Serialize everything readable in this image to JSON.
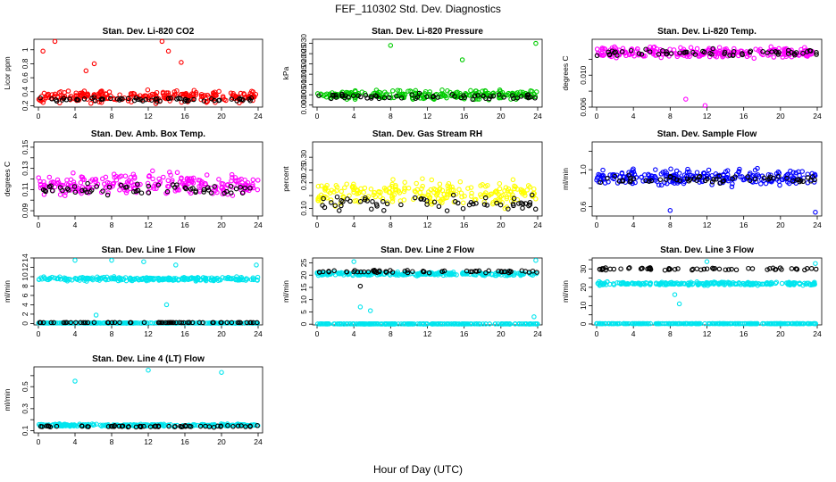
{
  "title": "FEF_110302  Std. Dev. Diagnostics",
  "xlabel": "Hour of Day (UTC)",
  "chart_data": [
    {
      "type": "scatter",
      "title": "Stan. Dev. Li-820 CO2",
      "ylabel": "Licor ppm",
      "xlim": [
        0,
        24
      ],
      "ylim": [
        0.18,
        1.15
      ],
      "yticks": [
        0.2,
        0.4,
        0.6,
        0.8,
        1.0
      ],
      "xticks": [
        0,
        4,
        8,
        12,
        16,
        20,
        24
      ],
      "series": [
        {
          "color": "#ff0000",
          "base": 0.33,
          "spread": 0.12,
          "outliers": [
            [
              0.5,
              0.98
            ],
            [
              1.8,
              1.12
            ],
            [
              5.2,
              0.7
            ],
            [
              6.1,
              0.8
            ],
            [
              13.5,
              1.12
            ],
            [
              14.2,
              0.98
            ],
            [
              15.6,
              0.82
            ]
          ]
        },
        {
          "color": "#000000",
          "base": 0.29,
          "spread": 0.04,
          "outliers": []
        }
      ]
    },
    {
      "type": "scatter",
      "title": "Stan. Dev. Li-820 Pressure",
      "ylabel": "kPa",
      "xlim": [
        0,
        24
      ],
      "ylim": [
        -0.001,
        0.032
      ],
      "yticks": [
        0.0,
        0.005,
        0.015,
        0.025
      ],
      "ytick_labels": [
        "0.000",
        "0.005",
        "0.015",
        "0.025"
      ],
      "ytick_labels_extra": [
        [
          0.01,
          "0.010"
        ],
        [
          0.02,
          "0.020"
        ],
        [
          0.03,
          "0.030"
        ]
      ],
      "xticks": [
        0,
        4,
        8,
        12,
        16,
        20,
        24
      ],
      "series": [
        {
          "color": "#00cc00",
          "base": 0.005,
          "spread": 0.003,
          "outliers": [
            [
              8,
              0.029
            ],
            [
              15.8,
              0.022
            ],
            [
              23.8,
              0.03
            ]
          ]
        },
        {
          "color": "#000000",
          "base": 0.004,
          "spread": 0.002,
          "outliers": []
        }
      ]
    },
    {
      "type": "scatter",
      "title": "Stan. Dev. Li-820 Temp.",
      "ylabel": "degrees C",
      "xlim": [
        0,
        24
      ],
      "ylim": [
        0.006,
        0.0145
      ],
      "yticks": [
        0.006,
        0.008,
        0.01,
        0.012
      ],
      "ytick_labels": [
        "0.006",
        "",
        "0.010",
        ""
      ],
      "xticks": [
        0,
        4,
        8,
        12,
        16,
        20,
        24
      ],
      "series": [
        {
          "color": "#ff00ff",
          "base": 0.0128,
          "spread": 0.001,
          "outliers": [
            [
              9.7,
              0.007
            ],
            [
              11.8,
              0.0062
            ]
          ]
        },
        {
          "color": "#000000",
          "base": 0.0128,
          "spread": 0.0006,
          "outliers": []
        }
      ]
    },
    {
      "type": "scatter",
      "title": "Stan. Dev. Amb. Box Temp.",
      "ylabel": "degrees C",
      "xlim": [
        0,
        24
      ],
      "ylim": [
        0.085,
        0.155
      ],
      "yticks": [
        0.09,
        0.1,
        0.11,
        0.12,
        0.13,
        0.14,
        0.15
      ],
      "ytick_labels": [
        "0.09",
        "",
        "0.11",
        "",
        "0.13",
        "",
        "0.15"
      ],
      "xticks": [
        0,
        4,
        8,
        12,
        16,
        20,
        24
      ],
      "series": [
        {
          "color": "#ff00ff",
          "base": 0.115,
          "spread": 0.015,
          "outliers": []
        },
        {
          "color": "#000000",
          "base": 0.11,
          "spread": 0.008,
          "outliers": []
        }
      ]
    },
    {
      "type": "scatter",
      "title": "Stan. Dev. Gas Stream RH",
      "ylabel": "percent",
      "xlim": [
        0,
        24
      ],
      "ylim": [
        0.07,
        0.36
      ],
      "yticks": [
        0.1,
        0.15,
        0.2,
        0.25,
        0.3
      ],
      "ytick_labels": [
        "0.10",
        "",
        "0.20",
        "0.25",
        "0.30"
      ],
      "xticks": [
        0,
        4,
        8,
        12,
        16,
        20,
        24
      ],
      "series": [
        {
          "color": "#ffff00",
          "base": 0.16,
          "spread": 0.07,
          "outliers": []
        },
        {
          "color": "#000000",
          "base": 0.12,
          "spread": 0.04,
          "outliers": []
        }
      ]
    },
    {
      "type": "scatter",
      "title": "Stan. Dev. Sample Flow",
      "ylabel": "ml/min",
      "xlim": [
        0,
        24
      ],
      "ylim": [
        0.5,
        1.3
      ],
      "yticks": [
        0.6,
        0.8,
        1.0,
        1.2
      ],
      "ytick_labels": [
        "0.6",
        "",
        "1.0",
        ""
      ],
      "xticks": [
        0,
        4,
        8,
        12,
        16,
        20,
        24
      ],
      "series": [
        {
          "color": "#0000ff",
          "base": 0.92,
          "spread": 0.12,
          "outliers": [
            [
              8,
              0.56
            ],
            [
              23.8,
              0.54
            ]
          ]
        },
        {
          "color": "#000000",
          "base": 0.9,
          "spread": 0.06,
          "outliers": []
        }
      ]
    },
    {
      "type": "scatter",
      "title": "Stan. Dev. Line 1 Flow",
      "ylabel": "ml/min",
      "xlim": [
        0,
        24
      ],
      "ylim": [
        -0.3,
        14
      ],
      "yticks": [
        0,
        2,
        4,
        6,
        8,
        10,
        12,
        14
      ],
      "xticks": [
        0,
        4,
        8,
        12,
        16,
        20,
        24
      ],
      "series": [
        {
          "color": "#00e5ee",
          "base": 9.5,
          "spread": 0.6,
          "outliers": [
            [
              4,
              13.5
            ],
            [
              6.3,
              1.8
            ],
            [
              8,
              13.5
            ],
            [
              11.5,
              13.2
            ],
            [
              14,
              4
            ],
            [
              15,
              12.5
            ],
            [
              23.8,
              12.5
            ]
          ]
        },
        {
          "color": "#00e5ee",
          "base": 0.1,
          "spread": 0.05,
          "outliers": []
        },
        {
          "color": "#000000",
          "base": 0.2,
          "spread": 0.02,
          "outliers": []
        }
      ]
    },
    {
      "type": "scatter",
      "title": "Stan. Dev. Line 2 Flow",
      "ylabel": "ml/min",
      "xlim": [
        0,
        24
      ],
      "ylim": [
        -0.3,
        27
      ],
      "yticks": [
        0,
        5,
        10,
        15,
        20,
        25
      ],
      "xticks": [
        0,
        4,
        8,
        12,
        16,
        20,
        24
      ],
      "series": [
        {
          "color": "#00e5ee",
          "base": 20.5,
          "spread": 1.0,
          "outliers": [
            [
              4,
              25.5
            ],
            [
              5.8,
              5.5
            ],
            [
              4.7,
              7
            ],
            [
              23.6,
              3
            ],
            [
              23.8,
              26
            ]
          ]
        },
        {
          "color": "#00e5ee",
          "base": 0.1,
          "spread": 0.05,
          "outliers": []
        },
        {
          "color": "#000000",
          "base": 21.5,
          "spread": 0.8,
          "outliers": [
            [
              4.7,
              15.5
            ]
          ]
        }
      ]
    },
    {
      "type": "scatter",
      "title": "Stan. Dev. Line 3 Flow",
      "ylabel": "ml/min",
      "xlim": [
        0,
        24
      ],
      "ylim": [
        -0.5,
        36
      ],
      "yticks": [
        0,
        5,
        10,
        15,
        20,
        25,
        30,
        35
      ],
      "ytick_labels": [
        "0",
        "",
        "10",
        "",
        "20",
        "",
        "30",
        ""
      ],
      "xticks": [
        0,
        4,
        8,
        12,
        16,
        20,
        24
      ],
      "series": [
        {
          "color": "#00e5ee",
          "base": 22,
          "spread": 1.2,
          "outliers": [
            [
              8.5,
              16
            ],
            [
              9,
              11
            ],
            [
              12,
              34
            ],
            [
              23.8,
              33
            ]
          ]
        },
        {
          "color": "#00e5ee",
          "base": 0.2,
          "spread": 0.05,
          "outliers": []
        },
        {
          "color": "#000000",
          "base": 30,
          "spread": 1.0,
          "outliers": []
        }
      ]
    },
    {
      "type": "scatter",
      "title": "Stan. Dev. Line 4 (LT) Flow",
      "ylabel": "ml/min",
      "xlim": [
        0,
        24
      ],
      "ylim": [
        0.08,
        0.68
      ],
      "yticks": [
        0.1,
        0.2,
        0.3,
        0.4,
        0.5,
        0.6
      ],
      "ytick_labels": [
        "0.1",
        "",
        "0.3",
        "",
        "0.5",
        ""
      ],
      "xticks": [
        0,
        4,
        8,
        12,
        16,
        20,
        24
      ],
      "series": [
        {
          "color": "#00e5ee",
          "base": 0.15,
          "spread": 0.015,
          "outliers": [
            [
              4,
              0.55
            ],
            [
              12,
              0.65
            ],
            [
              20,
              0.63
            ]
          ]
        },
        {
          "color": "#000000",
          "base": 0.14,
          "spread": 0.012,
          "outliers": []
        }
      ]
    }
  ]
}
